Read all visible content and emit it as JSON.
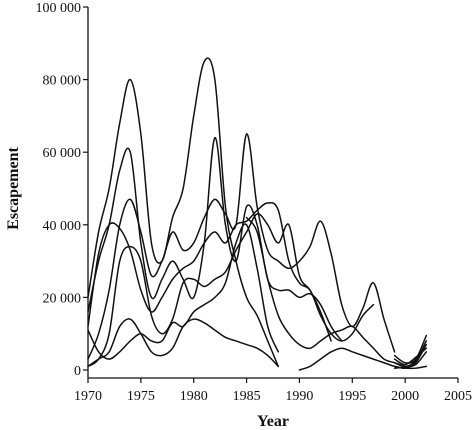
{
  "chart_data": {
    "type": "line",
    "title": "",
    "xlabel": "Year",
    "ylabel": "Escapement",
    "xlim": [
      1970,
      2005
    ],
    "ylim": [
      0,
      100000
    ],
    "x_ticks": [
      1970,
      1975,
      1980,
      1985,
      1990,
      1995,
      2000,
      2005
    ],
    "x_tick_labels": [
      "1970",
      "1975",
      "1980",
      "1985",
      "1990",
      "1995",
      "2000",
      "2005"
    ],
    "y_ticks": [
      0,
      20000,
      40000,
      60000,
      80000,
      100000
    ],
    "y_tick_labels": [
      "0",
      "20 000",
      "40 000",
      "60 000",
      "80 000",
      "100 000"
    ],
    "grid": false,
    "legend": "none",
    "series": [
      {
        "x": [
          1970,
          1971,
          1972,
          1973,
          1974,
          1975,
          1976,
          1977,
          1978,
          1979,
          1980,
          1981,
          1982,
          1983,
          1984,
          1985,
          1986,
          1987,
          1988
        ],
        "y": [
          20000,
          38000,
          50000,
          68000,
          80000,
          65000,
          35000,
          30000,
          42000,
          50000,
          70000,
          85000,
          80000,
          45000,
          30000,
          20000,
          15000,
          8000,
          1000
        ]
      },
      {
        "x": [
          1970,
          1971,
          1972,
          1973,
          1974,
          1975,
          1976,
          1977,
          1978,
          1979,
          1980,
          1981,
          1982,
          1983,
          1984,
          1985,
          1986,
          1987,
          1988,
          1989,
          1990,
          1991,
          1992,
          1993,
          1994
        ],
        "y": [
          16000,
          30000,
          40000,
          55000,
          60000,
          35000,
          20000,
          25000,
          30000,
          25000,
          20000,
          35000,
          64000,
          40000,
          30000,
          45000,
          40000,
          25000,
          22000,
          22000,
          20000,
          21000,
          18000,
          12000,
          8000
        ]
      },
      {
        "x": [
          1970,
          1971,
          1972,
          1973,
          1974,
          1975,
          1976,
          1977,
          1978,
          1979,
          1980,
          1981,
          1982,
          1983,
          1984,
          1985,
          1986,
          1987,
          1988,
          1989,
          1990,
          1991,
          1992,
          1993,
          1994,
          1995,
          1996,
          1997,
          1998,
          1999
        ],
        "y": [
          3000,
          10000,
          22000,
          40000,
          47000,
          38000,
          26000,
          30000,
          38000,
          33000,
          35000,
          42000,
          47000,
          43000,
          40000,
          65000,
          45000,
          33000,
          30000,
          28000,
          30000,
          34000,
          41000,
          32000,
          18000,
          12000,
          17000,
          24000,
          14000,
          5000
        ]
      },
      {
        "x": [
          1970,
          1971,
          1972,
          1973,
          1974,
          1975,
          1976,
          1977,
          1978,
          1979,
          1980,
          1981,
          1982,
          1983,
          1984,
          1985,
          1986,
          1987,
          1988,
          1989,
          1990,
          1991,
          1992,
          1993,
          1994,
          1995,
          1996,
          1997
        ],
        "y": [
          12000,
          32000,
          40000,
          39000,
          33000,
          22000,
          16000,
          20000,
          25000,
          28000,
          30000,
          35000,
          38000,
          35000,
          40000,
          41000,
          44000,
          46000,
          44000,
          30000,
          24000,
          22000,
          15000,
          10000,
          8000,
          10000,
          15000,
          18000
        ]
      },
      {
        "x": [
          1970,
          1971,
          1972,
          1973,
          1974,
          1975,
          1976,
          1977,
          1978,
          1979,
          1980,
          1981,
          1982,
          1983,
          1984,
          1985,
          1986,
          1987,
          1988,
          1989,
          1990,
          1991,
          1992,
          1993
        ],
        "y": [
          1000,
          3000,
          10000,
          30000,
          34000,
          30000,
          15000,
          10000,
          14000,
          24000,
          25000,
          23000,
          25000,
          27000,
          33000,
          38000,
          43000,
          40000,
          35000,
          40000,
          26000,
          22000,
          16000,
          8000
        ]
      },
      {
        "x": [
          1970,
          1971,
          1972,
          1973,
          1974,
          1975,
          1976,
          1977,
          1978,
          1979,
          1980,
          1981,
          1982,
          1983,
          1984,
          1985,
          1986,
          1987,
          1988
        ],
        "y": [
          1000,
          3000,
          5000,
          12000,
          14000,
          10000,
          5000,
          4000,
          6000,
          12000,
          14000,
          13000,
          11000,
          9000,
          8000,
          7000,
          6000,
          4000,
          1000
        ]
      },
      {
        "x": [
          1970,
          1971,
          1972,
          1973,
          1974,
          1975,
          1976,
          1977,
          1978,
          1979,
          1980,
          1981,
          1982,
          1983,
          1984,
          1985,
          1986,
          1987,
          1988
        ],
        "y": [
          11000,
          5000,
          3000,
          5000,
          8000,
          10000,
          8000,
          8000,
          13000,
          12000,
          16000,
          18000,
          20000,
          24000,
          35000,
          40000,
          28000,
          12000,
          5000
        ]
      },
      {
        "x": [
          1985,
          1986,
          1987,
          1988,
          1989,
          1990,
          1991,
          1992,
          1993,
          1994,
          1995,
          1996,
          1997,
          1998,
          1999,
          2000
        ],
        "y": [
          42000,
          38000,
          25000,
          15000,
          10000,
          7000,
          6000,
          8000,
          10000,
          11000,
          12000,
          9000,
          6000,
          3000,
          2000,
          1000
        ]
      },
      {
        "x": [
          1990,
          1991,
          1992,
          1993,
          1994,
          1995,
          1996,
          1997,
          1998,
          1999,
          2000,
          2001,
          2002
        ],
        "y": [
          0,
          1000,
          3000,
          5000,
          6000,
          5000,
          4000,
          3000,
          2000,
          1000,
          500,
          500,
          1000
        ]
      },
      {
        "x": [
          1999,
          2000,
          2001,
          2002
        ],
        "y": [
          4000,
          2000,
          3000,
          9500
        ]
      },
      {
        "x": [
          1999,
          2000,
          2001,
          2002
        ],
        "y": [
          2000,
          1000,
          2500,
          8000
        ]
      },
      {
        "x": [
          1999,
          2000,
          2001,
          2002
        ],
        "y": [
          1000,
          500,
          2000,
          7000
        ]
      },
      {
        "x": [
          1999,
          2000,
          2001,
          2002
        ],
        "y": [
          3000,
          1500,
          3500,
          6000
        ]
      },
      {
        "x": [
          1999,
          2000,
          2001,
          2002
        ],
        "y": [
          500,
          800,
          1500,
          5000
        ]
      }
    ]
  }
}
